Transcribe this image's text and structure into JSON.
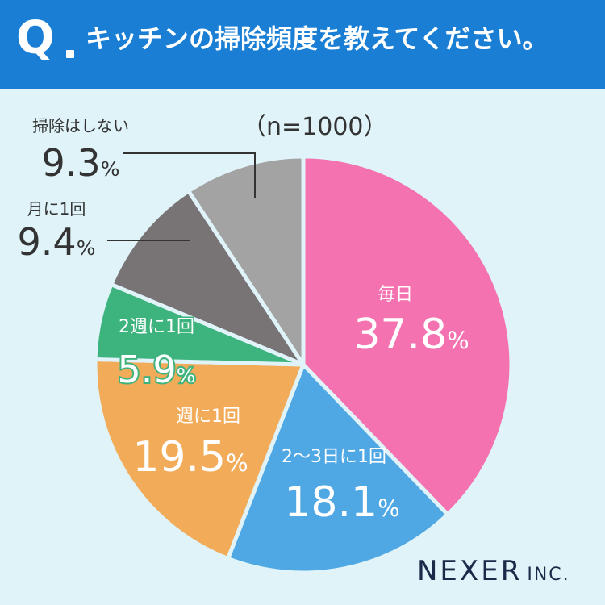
{
  "header": {
    "q_mark": "Q",
    "title": "キッチンの掃除頻度を教えてください。"
  },
  "sample_note": "（n=1000）",
  "colors": {
    "header_bg": "#1a7fd4",
    "page_bg": "#dff3f8"
  },
  "chart_data": {
    "type": "pie",
    "title": "キッチンの掃除頻度を教えてください。",
    "slices": [
      {
        "label": "毎日",
        "value": 37.8,
        "display": "37.8",
        "color": "#f472b0"
      },
      {
        "label": "2〜3日に1回",
        "value": 18.1,
        "display": "18.1",
        "color": "#4fa8e4"
      },
      {
        "label": "週に1回",
        "value": 19.5,
        "display": "19.5",
        "color": "#f2ab58"
      },
      {
        "label": "2週に1回",
        "value": 5.9,
        "display": "5.9",
        "color": "#3db37e"
      },
      {
        "label": "月に1回",
        "value": 9.4,
        "display": "9.4",
        "color": "#787375"
      },
      {
        "label": "掃除はしない",
        "value": 9.3,
        "display": "9.3",
        "color": "#a3a3a3"
      }
    ],
    "unit": "%"
  },
  "logo": {
    "main": "NEXER",
    "suffix": "INC."
  }
}
